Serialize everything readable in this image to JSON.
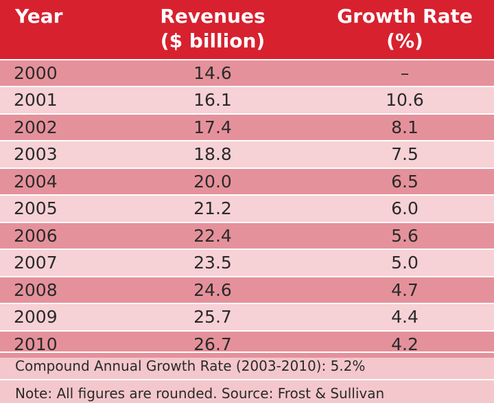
{
  "chart_data": {
    "type": "table",
    "columns": [
      {
        "line1": "Year",
        "line2": ""
      },
      {
        "line1": "Revenues",
        "line2": "($ billion)"
      },
      {
        "line1": "Growth Rate",
        "line2": "(%)"
      }
    ],
    "rows": [
      {
        "year": "2000",
        "revenue": "14.6",
        "growth": "–"
      },
      {
        "year": "2001",
        "revenue": "16.1",
        "growth": "10.6"
      },
      {
        "year": "2002",
        "revenue": "17.4",
        "growth": "8.1"
      },
      {
        "year": "2003",
        "revenue": "18.8",
        "growth": "7.5"
      },
      {
        "year": "2004",
        "revenue": "20.0",
        "growth": "6.5"
      },
      {
        "year": "2005",
        "revenue": "21.2",
        "growth": "6.0"
      },
      {
        "year": "2006",
        "revenue": "22.4",
        "growth": "5.6"
      },
      {
        "year": "2007",
        "revenue": "23.5",
        "growth": "5.0"
      },
      {
        "year": "2008",
        "revenue": "24.6",
        "growth": "4.7"
      },
      {
        "year": "2009",
        "revenue": "25.7",
        "growth": "4.4"
      },
      {
        "year": "2010",
        "revenue": "26.7",
        "growth": "4.2"
      }
    ],
    "cagr_note": "Compound Annual Growth Rate (2003-2010): 5.2%",
    "source_note": "Note: All figures are rounded. Source: Frost & Sullivan"
  },
  "colors": {
    "header": "#d8212f",
    "row_dark": "#e5919b",
    "row_light": "#f6d1d5",
    "footer": "#f3c7cb"
  }
}
